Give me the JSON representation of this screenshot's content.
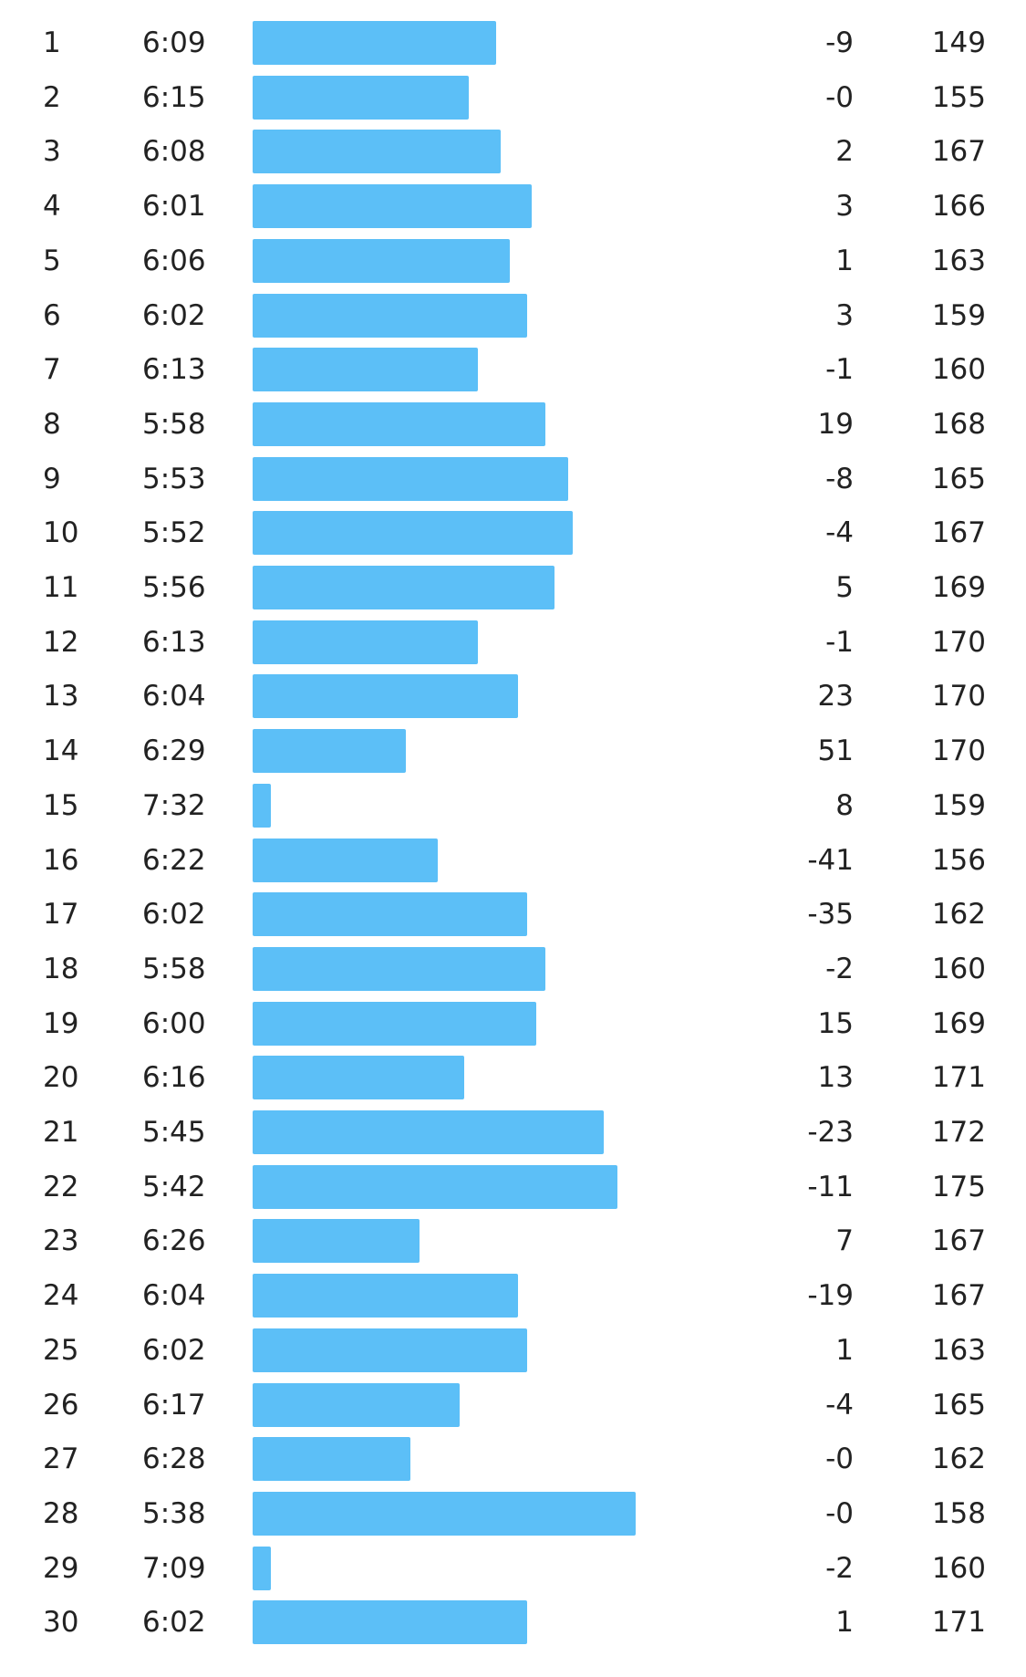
{
  "colors": {
    "bar": "#5cbff7",
    "text": "#222222",
    "background": "#ffffff"
  },
  "splits": [
    {
      "km": "1",
      "pace": "6:09",
      "pace_seconds": 369,
      "elevation": "-9",
      "heart_rate": "149"
    },
    {
      "km": "2",
      "pace": "6:15",
      "pace_seconds": 375,
      "elevation": "-0",
      "heart_rate": "155"
    },
    {
      "km": "3",
      "pace": "6:08",
      "pace_seconds": 368,
      "elevation": "2",
      "heart_rate": "167"
    },
    {
      "km": "4",
      "pace": "6:01",
      "pace_seconds": 361,
      "elevation": "3",
      "heart_rate": "166"
    },
    {
      "km": "5",
      "pace": "6:06",
      "pace_seconds": 366,
      "elevation": "1",
      "heart_rate": "163"
    },
    {
      "km": "6",
      "pace": "6:02",
      "pace_seconds": 362,
      "elevation": "3",
      "heart_rate": "159"
    },
    {
      "km": "7",
      "pace": "6:13",
      "pace_seconds": 373,
      "elevation": "-1",
      "heart_rate": "160"
    },
    {
      "km": "8",
      "pace": "5:58",
      "pace_seconds": 358,
      "elevation": "19",
      "heart_rate": "168"
    },
    {
      "km": "9",
      "pace": "5:53",
      "pace_seconds": 353,
      "elevation": "-8",
      "heart_rate": "165"
    },
    {
      "km": "10",
      "pace": "5:52",
      "pace_seconds": 352,
      "elevation": "-4",
      "heart_rate": "167"
    },
    {
      "km": "11",
      "pace": "5:56",
      "pace_seconds": 356,
      "elevation": "5",
      "heart_rate": "169"
    },
    {
      "km": "12",
      "pace": "6:13",
      "pace_seconds": 373,
      "elevation": "-1",
      "heart_rate": "170"
    },
    {
      "km": "13",
      "pace": "6:04",
      "pace_seconds": 364,
      "elevation": "23",
      "heart_rate": "170"
    },
    {
      "km": "14",
      "pace": "6:29",
      "pace_seconds": 389,
      "elevation": "51",
      "heart_rate": "170"
    },
    {
      "km": "15",
      "pace": "7:32",
      "pace_seconds": 452,
      "elevation": "8",
      "heart_rate": "159"
    },
    {
      "km": "16",
      "pace": "6:22",
      "pace_seconds": 382,
      "elevation": "-41",
      "heart_rate": "156"
    },
    {
      "km": "17",
      "pace": "6:02",
      "pace_seconds": 362,
      "elevation": "-35",
      "heart_rate": "162"
    },
    {
      "km": "18",
      "pace": "5:58",
      "pace_seconds": 358,
      "elevation": "-2",
      "heart_rate": "160"
    },
    {
      "km": "19",
      "pace": "6:00",
      "pace_seconds": 360,
      "elevation": "15",
      "heart_rate": "169"
    },
    {
      "km": "20",
      "pace": "6:16",
      "pace_seconds": 376,
      "elevation": "13",
      "heart_rate": "171"
    },
    {
      "km": "21",
      "pace": "5:45",
      "pace_seconds": 345,
      "elevation": "-23",
      "heart_rate": "172"
    },
    {
      "km": "22",
      "pace": "5:42",
      "pace_seconds": 342,
      "elevation": "-11",
      "heart_rate": "175"
    },
    {
      "km": "23",
      "pace": "6:26",
      "pace_seconds": 386,
      "elevation": "7",
      "heart_rate": "167"
    },
    {
      "km": "24",
      "pace": "6:04",
      "pace_seconds": 364,
      "elevation": "-19",
      "heart_rate": "167"
    },
    {
      "km": "25",
      "pace": "6:02",
      "pace_seconds": 362,
      "elevation": "1",
      "heart_rate": "163"
    },
    {
      "km": "26",
      "pace": "6:17",
      "pace_seconds": 377,
      "elevation": "-4",
      "heart_rate": "165"
    },
    {
      "km": "27",
      "pace": "6:28",
      "pace_seconds": 388,
      "elevation": "-0",
      "heart_rate": "162"
    },
    {
      "km": "28",
      "pace": "5:38",
      "pace_seconds": 338,
      "elevation": "-0",
      "heart_rate": "158"
    },
    {
      "km": "29",
      "pace": "7:09",
      "pace_seconds": 429,
      "elevation": "-2",
      "heart_rate": "160"
    },
    {
      "km": "30",
      "pace": "6:02",
      "pace_seconds": 362,
      "elevation": "1",
      "heart_rate": "171"
    }
  ]
}
